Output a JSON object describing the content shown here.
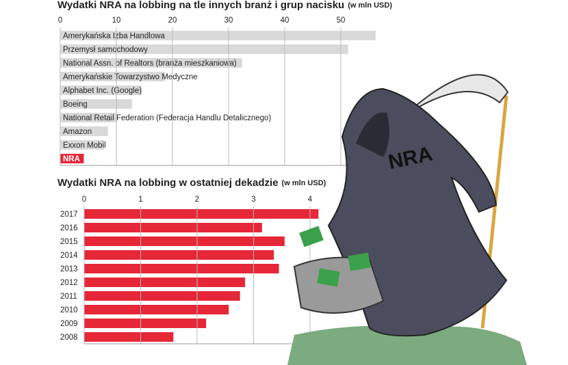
{
  "chart_data": [
    {
      "type": "hbar",
      "title": "Wydatki NRA na lobbing na tle innych branż i grup nacisku",
      "subtitle": "(w mln USD)",
      "categories": [
        "Amerykańska Izba Handlowa",
        "Przemysł samochodowy",
        "National Assn. of Realtors (branża mieszkaniowa)",
        "Amerykańskie Towarzystwo Medyczne",
        "Alphabet Inc. (Google)",
        "Boeing",
        "National Retail Federation (Federacja Handlu Detalicznego)",
        "Amazon",
        "Exxon Mobil",
        "NRA"
      ],
      "values": [
        56.2,
        51.3,
        32.4,
        18.7,
        14.5,
        12.8,
        10,
        8.5,
        7.8,
        4.2
      ],
      "colors": [
        "#d9d9d9",
        "#d9d9d9",
        "#d9d9d9",
        "#d9d9d9",
        "#d9d9d9",
        "#d9d9d9",
        "#d9d9d9",
        "#d9d9d9",
        "#d9d9d9",
        "#e52738"
      ],
      "xlim": [
        0,
        57
      ],
      "xticks": [
        0,
        10,
        20,
        30,
        40,
        50
      ],
      "grid": true
    },
    {
      "type": "hbar",
      "title": "Wydatki NRA na lobbing w ostatniej dekadzie",
      "subtitle": "(w mln USD)",
      "categories": [
        "2017",
        "2016",
        "2015",
        "2014",
        "2013",
        "2012",
        "2011",
        "2010",
        "2009",
        "2008"
      ],
      "values": [
        4.15,
        3.15,
        3.55,
        3.36,
        3.45,
        2.85,
        2.76,
        2.56,
        2.16,
        1.58
      ],
      "color": "#e52738",
      "xlim": [
        0,
        4.3
      ],
      "xticks": [
        0,
        1,
        2,
        3,
        4
      ],
      "grid": true
    }
  ],
  "illustration": {
    "label": "NRA"
  }
}
